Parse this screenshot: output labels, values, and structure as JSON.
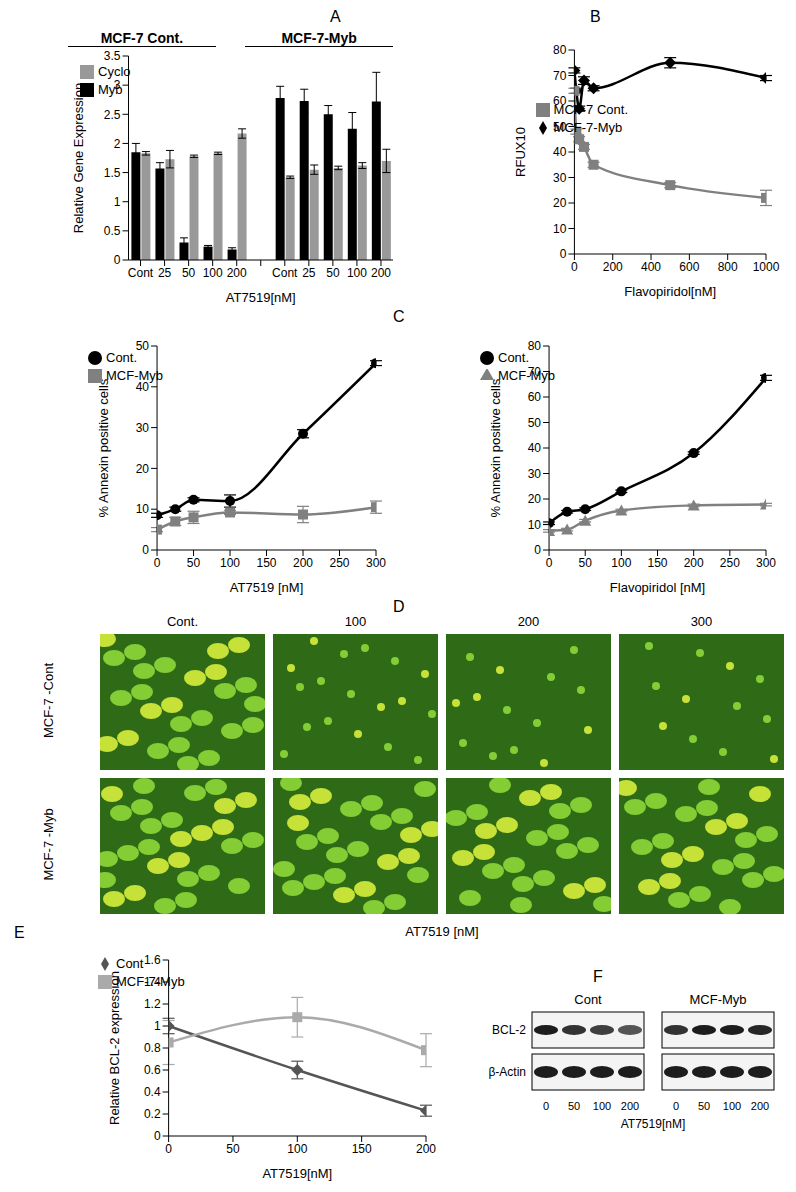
{
  "chart_data": [
    {
      "title": "A",
      "type": "bar",
      "categories": [
        "Cont",
        "25",
        "50",
        "100",
        "200",
        null,
        "Cont",
        "25",
        "50",
        "100",
        "200"
      ],
      "annotations": [
        "MCF-7 Cont.",
        "MCF-7-Myb"
      ],
      "x_label": "AT7519[nM]",
      "y_label": "Relative Gene Expression",
      "ylim": [
        0,
        3.5
      ],
      "yticks": [
        0,
        0.5,
        1,
        1.5,
        2,
        2.5,
        3,
        3.5
      ],
      "legend": "upper left",
      "series": [
        {
          "name": "Myb",
          "color": "#000000",
          "values": [
            1.85,
            1.57,
            0.3,
            0.23,
            0.18,
            null,
            2.78,
            2.73,
            2.5,
            2.25,
            2.72
          ],
          "errors": [
            0.15,
            0.1,
            0.08,
            0.02,
            0.03,
            null,
            0.2,
            0.2,
            0.15,
            0.28,
            0.5
          ]
        },
        {
          "name": "Cyclo",
          "color": "#999999",
          "values": [
            1.83,
            1.73,
            1.78,
            1.83,
            2.17,
            null,
            1.42,
            1.55,
            1.58,
            1.62,
            1.7
          ],
          "errors": [
            0.03,
            0.15,
            0.02,
            0.02,
            0.08,
            null,
            0.02,
            0.08,
            0.03,
            0.05,
            0.2
          ]
        }
      ]
    },
    {
      "title": "B",
      "type": "line",
      "x": [
        0,
        10,
        25,
        50,
        100,
        500,
        1000
      ],
      "xlim": [
        0,
        1000
      ],
      "xticks": [
        0,
        200,
        400,
        600,
        800,
        1000
      ],
      "ylim": [
        0,
        80
      ],
      "yticks": [
        0,
        10,
        20,
        30,
        40,
        50,
        60,
        70,
        80
      ],
      "x_label": "Flavopiridol[nM]",
      "y_label": "RFUX10",
      "legend": "upper right",
      "series": [
        {
          "name": "MCF-7-Myb",
          "color": "#000000",
          "marker": "diamond",
          "values": [
            72,
            64,
            57,
            68,
            65,
            75,
            69
          ],
          "errors": [
            1,
            1,
            1,
            1.5,
            1,
            2,
            1
          ]
        },
        {
          "name": "MCF-7 Cont.",
          "color": "#808080",
          "marker": "square",
          "values": [
            64,
            48,
            45,
            42,
            35,
            27,
            22
          ],
          "errors": [
            1,
            1,
            1,
            1,
            1,
            1,
            3
          ]
        }
      ]
    },
    {
      "title": "C",
      "type": "line",
      "x": [
        0,
        25,
        50,
        100,
        200,
        300
      ],
      "xlim": [
        0,
        300
      ],
      "xticks": [
        0,
        50,
        100,
        150,
        200,
        250,
        300
      ],
      "ylim": [
        0,
        50
      ],
      "yticks": [
        0,
        10,
        20,
        30,
        40,
        50
      ],
      "x_label": "AT7519 [nM]",
      "y_label": "% Annexin positive cells",
      "legend": "upper left",
      "series": [
        {
          "name": "Cont.",
          "color": "#000000",
          "marker": "circle",
          "values": [
            8.5,
            10,
            12.3,
            12,
            28.5,
            45.8
          ],
          "errors": [
            0.5,
            0.5,
            0.5,
            1.5,
            1,
            0.6
          ]
        },
        {
          "name": "MCF-Myb",
          "color": "#808080",
          "marker": "square",
          "values": [
            5,
            7,
            8,
            9.2,
            8.7,
            10.5
          ],
          "errors": [
            0.5,
            1,
            1.5,
            0.5,
            2,
            1.5
          ]
        }
      ]
    },
    {
      "type": "line",
      "x": [
        0,
        25,
        50,
        100,
        200,
        300
      ],
      "xlim": [
        0,
        300
      ],
      "xticks": [
        0,
        50,
        100,
        150,
        200,
        250,
        300
      ],
      "ylim": [
        0,
        80
      ],
      "yticks": [
        0,
        10,
        20,
        30,
        40,
        50,
        60,
        70,
        80
      ],
      "x_label": "Flavopiridol [nM]",
      "y_label": "% Annexin positive cells",
      "legend": "upper left",
      "series": [
        {
          "name": "Cont.",
          "color": "#000000",
          "marker": "circle",
          "values": [
            10.5,
            15,
            16,
            23,
            38,
            67.5
          ],
          "errors": [
            0.5,
            0.5,
            0.5,
            0.5,
            0.5,
            1
          ]
        },
        {
          "name": "MCF-Myb",
          "color": "#808080",
          "marker": "triangle",
          "values": [
            7.5,
            8,
            11.5,
            15.5,
            17.5,
            17.8
          ],
          "errors": [
            0.5,
            0.5,
            0.5,
            0.5,
            0.5,
            0.5
          ]
        }
      ]
    },
    {
      "title": "D",
      "type": "image_grid",
      "columns": [
        "Cont.",
        "100",
        "200",
        "300"
      ],
      "rows": [
        "MCF-7 -Cont",
        "MCF-7 -Myb"
      ],
      "x_label": "AT7519 [nM]"
    },
    {
      "title": "E",
      "type": "line",
      "x": [
        0,
        100,
        200
      ],
      "xlim": [
        0,
        200
      ],
      "xticks": [
        0,
        50,
        100,
        150,
        200
      ],
      "ylim": [
        0,
        1.6
      ],
      "yticks": [
        0,
        0.2,
        0.4,
        0.6,
        0.8,
        1,
        1.2,
        1.4,
        1.6
      ],
      "x_label": "AT7519[nM]",
      "y_label": "Relative BCL-2 expression",
      "legend": "upper left",
      "series": [
        {
          "name": "Cont",
          "color": "#555555",
          "marker": "diamond",
          "values": [
            1.0,
            0.6,
            0.23
          ],
          "errors": [
            0.07,
            0.08,
            0.05
          ]
        },
        {
          "name": "MCF-7-Myb",
          "color": "#aaaaaa",
          "marker": "square",
          "values": [
            0.85,
            1.08,
            0.78
          ],
          "errors": [
            0.2,
            0.18,
            0.15
          ]
        }
      ]
    },
    {
      "title": "F",
      "type": "blot",
      "groups": [
        "Cont",
        "MCF-Myb"
      ],
      "rows": [
        "BCL-2",
        "β-Actin"
      ],
      "lanes": [
        "0",
        "50",
        "100",
        "200"
      ],
      "x_label": "AT7519[nM]"
    }
  ]
}
